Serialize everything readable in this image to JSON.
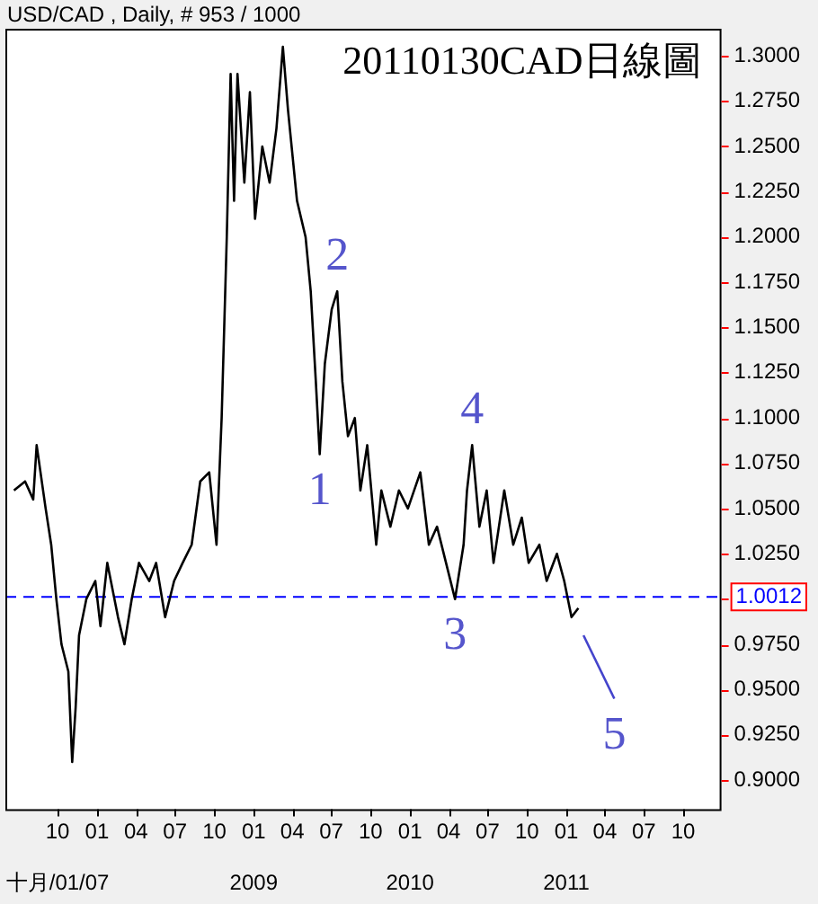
{
  "chart_data": {
    "type": "line",
    "title": "20110130CAD日線圖",
    "subtitle": "USD/CAD , Daily, # 953 / 1000",
    "x": [
      "2007-06-21",
      "2007-07-17",
      "2007-08-05",
      "2007-08-13",
      "2007-09-03",
      "2007-09-16",
      "2007-09-28",
      "2007-10-10",
      "2007-10-26",
      "2007-11-04",
      "2007-11-12",
      "2007-11-20",
      "2007-12-07",
      "2007-12-28",
      "2008-01-09",
      "2008-01-25",
      "2008-02-19",
      "2008-03-05",
      "2008-03-22",
      "2008-04-08",
      "2008-05-02",
      "2008-05-18",
      "2008-06-08",
      "2008-06-29",
      "2008-07-19",
      "2008-08-09",
      "2008-08-29",
      "2008-09-19",
      "2008-10-06",
      "2008-10-18",
      "2008-10-30",
      "2008-11-08",
      "2008-11-16",
      "2008-11-24",
      "2008-12-10",
      "2008-12-23",
      "2009-01-04",
      "2009-01-21",
      "2009-02-07",
      "2009-02-23",
      "2009-03-10",
      "2009-03-22",
      "2009-04-12",
      "2009-05-02",
      "2009-05-14",
      "2009-05-26",
      "2009-06-04",
      "2009-06-16",
      "2009-07-02",
      "2009-07-15",
      "2009-07-27",
      "2009-08-09",
      "2009-08-25",
      "2009-09-07",
      "2009-09-23",
      "2009-10-14",
      "2009-10-26",
      "2009-11-16",
      "2009-12-06",
      "2009-12-27",
      "2010-01-25",
      "2010-02-14",
      "2010-03-05",
      "2010-03-26",
      "2010-04-16",
      "2010-05-06",
      "2010-05-14",
      "2010-05-26",
      "2010-06-12",
      "2010-06-29",
      "2010-07-15",
      "2010-08-09",
      "2010-08-30",
      "2010-09-19",
      "2010-10-05",
      "2010-10-30",
      "2010-11-16",
      "2010-12-10",
      "2010-12-27",
      "2011-01-13",
      "2011-01-29"
    ],
    "series": [
      {
        "color": "#000000",
        "values": [
          1.06,
          1.065,
          1.055,
          1.085,
          1.05,
          1.03,
          1.0,
          0.975,
          0.96,
          0.91,
          0.94,
          0.98,
          1.0,
          1.01,
          0.985,
          1.02,
          0.99,
          0.975,
          1.0,
          1.02,
          1.01,
          1.02,
          0.99,
          1.01,
          1.02,
          1.03,
          1.065,
          1.07,
          1.03,
          1.1,
          1.2,
          1.29,
          1.22,
          1.29,
          1.23,
          1.28,
          1.21,
          1.25,
          1.23,
          1.26,
          1.305,
          1.27,
          1.22,
          1.2,
          1.17,
          1.12,
          1.08,
          1.13,
          1.16,
          1.17,
          1.12,
          1.09,
          1.1,
          1.06,
          1.085,
          1.03,
          1.06,
          1.04,
          1.06,
          1.05,
          1.07,
          1.03,
          1.04,
          1.02,
          1.0,
          1.03,
          1.06,
          1.085,
          1.04,
          1.06,
          1.02,
          1.06,
          1.03,
          1.045,
          1.02,
          1.03,
          1.01,
          1.025,
          1.01,
          0.99,
          0.995
        ]
      },
      {
        "type": "line",
        "color": "#4444cc",
        "x": [
          "2011-02-10",
          "2011-04-23"
        ],
        "values": [
          0.98,
          0.945
        ]
      }
    ],
    "xlim": [
      "2007-06-01",
      "2011-12-25"
    ],
    "xticks": [
      {
        "value": "2007-10-01",
        "label": "10"
      },
      {
        "value": "2008-01-01",
        "label": "01"
      },
      {
        "value": "2008-04-01",
        "label": "04"
      },
      {
        "value": "2008-07-01",
        "label": "07"
      },
      {
        "value": "2008-10-01",
        "label": "10"
      },
      {
        "value": "2009-01-01",
        "label": "01"
      },
      {
        "value": "2009-04-01",
        "label": "04"
      },
      {
        "value": "2009-07-01",
        "label": "07"
      },
      {
        "value": "2009-10-01",
        "label": "10"
      },
      {
        "value": "2010-01-01",
        "label": "01"
      },
      {
        "value": "2010-04-01",
        "label": "04"
      },
      {
        "value": "2010-07-01",
        "label": "07"
      },
      {
        "value": "2010-10-01",
        "label": "10"
      },
      {
        "value": "2011-01-01",
        "label": "01"
      },
      {
        "value": "2011-04-01",
        "label": "04"
      },
      {
        "value": "2011-07-01",
        "label": "07"
      },
      {
        "value": "2011-10-01",
        "label": "10"
      }
    ],
    "x2lim": [
      "2007-06-01",
      "2011-12-25"
    ],
    "x2ticks": [
      {
        "value": "2007-10-01",
        "label": "十月/01/07"
      },
      {
        "value": "2009-01-01",
        "label": "2009"
      },
      {
        "value": "2010-01-01",
        "label": "2010"
      },
      {
        "value": "2011-01-01",
        "label": "2011"
      }
    ],
    "ylim": [
      0.884,
      1.315
    ],
    "yticks": [
      {
        "value": 0.9,
        "label": "0.9000"
      },
      {
        "value": 0.925,
        "label": "0.9250"
      },
      {
        "value": 0.95,
        "label": "0.9500"
      },
      {
        "value": 0.975,
        "label": "0.9750"
      },
      {
        "value": 1.0,
        "label": null
      },
      {
        "value": 1.025,
        "label": "1.0250"
      },
      {
        "value": 1.05,
        "label": "1.0500"
      },
      {
        "value": 1.075,
        "label": "1.0750"
      },
      {
        "value": 1.1,
        "label": "1.1000"
      },
      {
        "value": 1.125,
        "label": "1.1250"
      },
      {
        "value": 1.15,
        "label": "1.1500"
      },
      {
        "value": 1.175,
        "label": "1.1750"
      },
      {
        "value": 1.2,
        "label": "1.2000"
      },
      {
        "value": 1.225,
        "label": "1.2250"
      },
      {
        "value": 1.25,
        "label": "1.2500"
      },
      {
        "value": 1.275,
        "label": "1.2750"
      },
      {
        "value": 1.3,
        "label": "1.3000"
      }
    ],
    "ref_lines": [
      {
        "axis": "y",
        "value": 1.0012,
        "label": "1.0012",
        "color": "#0000ff",
        "line_style": "dashed"
      }
    ],
    "annotations": [
      {
        "text": "1",
        "x": "2009-06-04",
        "y": 1.08
      },
      {
        "text": "2",
        "x": "2009-07-15",
        "y": 1.17
      },
      {
        "text": "3",
        "x": "2010-04-16",
        "y": 1.0
      },
      {
        "text": "4",
        "x": "2010-05-26",
        "y": 1.085
      },
      {
        "text": "5",
        "x": "2011-04-23",
        "y": 0.945
      }
    ],
    "grid": false,
    "legend": false,
    "marker": "none",
    "line_style": "solid"
  }
}
